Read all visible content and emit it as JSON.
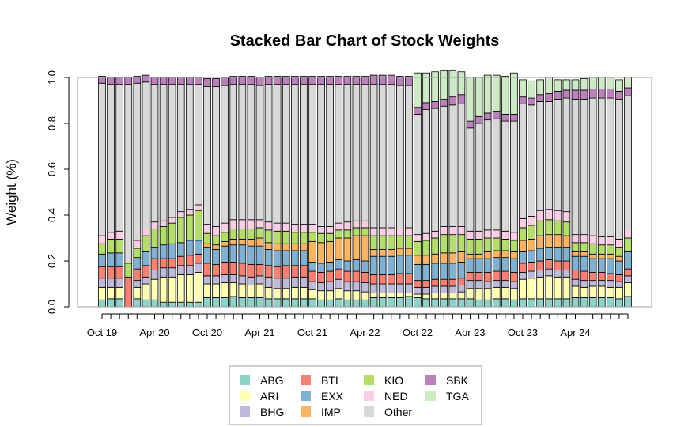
{
  "chart_data": {
    "type": "bar",
    "stacked": true,
    "title": "Stacked Bar Chart of Stock Weights",
    "xlabel": "",
    "ylabel": "Weight (%)",
    "ylim": [
      0,
      1
    ],
    "yticks": [
      0.0,
      0.2,
      0.4,
      0.6,
      0.8,
      1.0
    ],
    "ytick_labels": [
      "0.0",
      "0.2",
      "0.4",
      "0.6",
      "0.8",
      "1.0"
    ],
    "grid": false,
    "legend_position": "bottom",
    "categories": [
      "2019-10",
      "2019-11",
      "2019-12",
      "2020-01",
      "2020-02",
      "2020-03",
      "2020-04",
      "2020-05",
      "2020-06",
      "2020-07",
      "2020-08",
      "2020-09",
      "2020-10",
      "2020-11",
      "2020-12",
      "2021-01",
      "2021-02",
      "2021-03",
      "2021-04",
      "2021-05",
      "2021-06",
      "2021-07",
      "2021-08",
      "2021-09",
      "2021-10",
      "2021-11",
      "2021-12",
      "2022-01",
      "2022-02",
      "2022-03",
      "2022-04",
      "2022-05",
      "2022-06",
      "2022-07",
      "2022-08",
      "2022-09",
      "2022-10",
      "2022-11",
      "2022-12",
      "2023-01",
      "2023-02",
      "2023-03",
      "2023-04",
      "2023-05",
      "2023-06",
      "2023-07",
      "2023-08",
      "2023-09",
      "2023-10",
      "2023-11",
      "2023-12",
      "2024-01",
      "2024-02",
      "2024-03",
      "2024-04",
      "2024-05",
      "2024-06",
      "2024-07",
      "2024-08",
      "2024-09",
      "2024-10"
    ],
    "x_tick_labels": [
      {
        "index": 0,
        "label": "Oct 19"
      },
      {
        "index": 6,
        "label": "Apr 20"
      },
      {
        "index": 12,
        "label": "Oct 20"
      },
      {
        "index": 18,
        "label": "Apr 21"
      },
      {
        "index": 24,
        "label": "Oct 21"
      },
      {
        "index": 30,
        "label": "Apr 22"
      },
      {
        "index": 36,
        "label": "Oct 22"
      },
      {
        "index": 42,
        "label": "Apr 23"
      },
      {
        "index": 48,
        "label": "Oct 23"
      },
      {
        "index": 54,
        "label": "Apr 24"
      }
    ],
    "series": [
      {
        "name": "ABG",
        "color": "#8DD3C7",
        "values": [
          0.03,
          0.035,
          0.035,
          0.0,
          0.035,
          0.03,
          0.03,
          0.02,
          0.02,
          0.02,
          0.02,
          0.02,
          0.04,
          0.04,
          0.04,
          0.045,
          0.04,
          0.04,
          0.04,
          0.035,
          0.035,
          0.035,
          0.035,
          0.035,
          0.035,
          0.03,
          0.03,
          0.035,
          0.03,
          0.03,
          0.03,
          0.04,
          0.04,
          0.04,
          0.04,
          0.045,
          0.04,
          0.035,
          0.035,
          0.035,
          0.035,
          0.035,
          0.035,
          0.03,
          0.03,
          0.035,
          0.035,
          0.03,
          0.035,
          0.035,
          0.035,
          0.035,
          0.035,
          0.035,
          0.04,
          0.04,
          0.04,
          0.04,
          0.04,
          0.035,
          0.045
        ]
      },
      {
        "name": "ARI",
        "color": "#FFFFB3",
        "values": [
          0.055,
          0.05,
          0.05,
          0.0,
          0.05,
          0.07,
          0.09,
          0.11,
          0.11,
          0.12,
          0.12,
          0.13,
          0.06,
          0.06,
          0.065,
          0.06,
          0.06,
          0.055,
          0.06,
          0.05,
          0.045,
          0.045,
          0.05,
          0.05,
          0.04,
          0.04,
          0.04,
          0.045,
          0.04,
          0.04,
          0.035,
          0.02,
          0.02,
          0.02,
          0.02,
          0.015,
          0.015,
          0.02,
          0.025,
          0.025,
          0.025,
          0.03,
          0.045,
          0.05,
          0.05,
          0.05,
          0.05,
          0.05,
          0.085,
          0.09,
          0.095,
          0.1,
          0.095,
          0.095,
          0.05,
          0.045,
          0.05,
          0.05,
          0.045,
          0.05,
          0.06
        ]
      },
      {
        "name": "BHG",
        "color": "#BEBADA",
        "values": [
          0.04,
          0.04,
          0.04,
          0.0,
          0.03,
          0.03,
          0.04,
          0.04,
          0.04,
          0.04,
          0.04,
          0.04,
          0.035,
          0.035,
          0.035,
          0.035,
          0.035,
          0.035,
          0.035,
          0.045,
          0.045,
          0.045,
          0.045,
          0.045,
          0.035,
          0.035,
          0.04,
          0.04,
          0.04,
          0.04,
          0.04,
          0.04,
          0.04,
          0.04,
          0.04,
          0.04,
          0.03,
          0.03,
          0.03,
          0.03,
          0.03,
          0.03,
          0.035,
          0.035,
          0.03,
          0.03,
          0.03,
          0.03,
          0.03,
          0.03,
          0.03,
          0.03,
          0.03,
          0.03,
          0.03,
          0.03,
          0.025,
          0.025,
          0.03,
          0.025,
          0.03
        ]
      },
      {
        "name": "BTI",
        "color": "#FB8072",
        "values": [
          0.05,
          0.05,
          0.05,
          0.13,
          0.05,
          0.05,
          0.05,
          0.04,
          0.04,
          0.04,
          0.045,
          0.04,
          0.055,
          0.05,
          0.055,
          0.055,
          0.055,
          0.055,
          0.05,
          0.05,
          0.05,
          0.055,
          0.05,
          0.05,
          0.045,
          0.045,
          0.045,
          0.045,
          0.045,
          0.045,
          0.045,
          0.04,
          0.04,
          0.04,
          0.045,
          0.045,
          0.03,
          0.03,
          0.03,
          0.03,
          0.03,
          0.03,
          0.035,
          0.035,
          0.04,
          0.04,
          0.04,
          0.04,
          0.04,
          0.04,
          0.04,
          0.04,
          0.04,
          0.04,
          0.04,
          0.04,
          0.035,
          0.035,
          0.03,
          0.03,
          0.03
        ]
      },
      {
        "name": "EXX",
        "color": "#80B1D3",
        "values": [
          0.055,
          0.06,
          0.06,
          0.0,
          0.05,
          0.06,
          0.05,
          0.06,
          0.065,
          0.06,
          0.065,
          0.06,
          0.07,
          0.065,
          0.07,
          0.075,
          0.08,
          0.08,
          0.08,
          0.07,
          0.07,
          0.065,
          0.065,
          0.065,
          0.04,
          0.04,
          0.04,
          0.04,
          0.045,
          0.05,
          0.05,
          0.08,
          0.08,
          0.08,
          0.08,
          0.08,
          0.07,
          0.07,
          0.07,
          0.07,
          0.07,
          0.07,
          0.06,
          0.06,
          0.06,
          0.06,
          0.06,
          0.06,
          0.05,
          0.05,
          0.055,
          0.055,
          0.06,
          0.06,
          0.06,
          0.065,
          0.06,
          0.06,
          0.065,
          0.06,
          0.075
        ]
      },
      {
        "name": "IMP",
        "color": "#FDB462",
        "values": [
          0.0,
          0.0,
          0.0,
          0.0,
          0.0,
          0.0,
          0.0,
          0.0,
          0.0,
          0.0,
          0.0,
          0.0,
          0.015,
          0.02,
          0.02,
          0.025,
          0.025,
          0.03,
          0.035,
          0.03,
          0.03,
          0.03,
          0.03,
          0.03,
          0.09,
          0.09,
          0.09,
          0.095,
          0.1,
          0.105,
          0.11,
          0.03,
          0.03,
          0.03,
          0.03,
          0.03,
          0.04,
          0.04,
          0.04,
          0.045,
          0.045,
          0.045,
          0.02,
          0.02,
          0.03,
          0.03,
          0.03,
          0.03,
          0.05,
          0.05,
          0.055,
          0.055,
          0.055,
          0.05,
          0.02,
          0.02,
          0.02,
          0.02,
          0.02,
          0.02,
          0.0
        ]
      },
      {
        "name": "KIO",
        "color": "#B3DE69",
        "values": [
          0.045,
          0.06,
          0.06,
          0.06,
          0.04,
          0.07,
          0.08,
          0.08,
          0.09,
          0.11,
          0.11,
          0.13,
          0.045,
          0.04,
          0.04,
          0.045,
          0.045,
          0.045,
          0.045,
          0.055,
          0.055,
          0.055,
          0.05,
          0.05,
          0.04,
          0.04,
          0.035,
          0.035,
          0.035,
          0.035,
          0.035,
          0.06,
          0.06,
          0.06,
          0.055,
          0.055,
          0.06,
          0.065,
          0.07,
          0.08,
          0.08,
          0.075,
          0.065,
          0.065,
          0.06,
          0.055,
          0.05,
          0.05,
          0.055,
          0.06,
          0.065,
          0.065,
          0.06,
          0.06,
          0.04,
          0.04,
          0.045,
          0.04,
          0.04,
          0.04,
          0.06
        ]
      },
      {
        "name": "NED",
        "color": "#FCCDE5",
        "values": [
          0.035,
          0.03,
          0.035,
          0.0,
          0.035,
          0.03,
          0.03,
          0.025,
          0.025,
          0.025,
          0.025,
          0.025,
          0.04,
          0.04,
          0.04,
          0.04,
          0.04,
          0.04,
          0.035,
          0.035,
          0.035,
          0.035,
          0.035,
          0.035,
          0.035,
          0.03,
          0.03,
          0.03,
          0.035,
          0.03,
          0.03,
          0.035,
          0.035,
          0.035,
          0.03,
          0.035,
          0.03,
          0.03,
          0.03,
          0.035,
          0.035,
          0.035,
          0.035,
          0.035,
          0.035,
          0.035,
          0.035,
          0.035,
          0.04,
          0.04,
          0.045,
          0.045,
          0.045,
          0.045,
          0.035,
          0.035,
          0.035,
          0.035,
          0.035,
          0.035,
          0.04
        ]
      },
      {
        "name": "Other",
        "color": "#D9D9D9",
        "values": [
          0.665,
          0.645,
          0.64,
          0.78,
          0.685,
          0.64,
          0.6,
          0.595,
          0.58,
          0.555,
          0.545,
          0.525,
          0.6,
          0.61,
          0.6,
          0.59,
          0.59,
          0.59,
          0.585,
          0.6,
          0.605,
          0.605,
          0.61,
          0.61,
          0.61,
          0.62,
          0.62,
          0.605,
          0.6,
          0.595,
          0.595,
          0.625,
          0.625,
          0.625,
          0.625,
          0.62,
          0.525,
          0.54,
          0.535,
          0.525,
          0.53,
          0.535,
          0.45,
          0.47,
          0.48,
          0.485,
          0.48,
          0.485,
          0.5,
          0.485,
          0.475,
          0.47,
          0.485,
          0.495,
          0.59,
          0.59,
          0.6,
          0.605,
          0.605,
          0.61,
          0.58
        ]
      },
      {
        "name": "SBK",
        "color": "#BC80BD",
        "values": [
          0.03,
          0.03,
          0.03,
          0.03,
          0.03,
          0.03,
          0.03,
          0.03,
          0.03,
          0.03,
          0.03,
          0.03,
          0.035,
          0.035,
          0.035,
          0.035,
          0.035,
          0.035,
          0.035,
          0.035,
          0.035,
          0.035,
          0.035,
          0.035,
          0.035,
          0.035,
          0.035,
          0.035,
          0.035,
          0.035,
          0.035,
          0.04,
          0.04,
          0.04,
          0.04,
          0.04,
          0.03,
          0.03,
          0.03,
          0.03,
          0.035,
          0.04,
          0.03,
          0.03,
          0.03,
          0.03,
          0.03,
          0.03,
          0.03,
          0.03,
          0.03,
          0.035,
          0.035,
          0.035,
          0.04,
          0.04,
          0.04,
          0.04,
          0.04,
          0.035,
          0.035
        ]
      },
      {
        "name": "TGA",
        "color": "#CCEBC5",
        "values": [
          0.0,
          0.0,
          0.0,
          0.0,
          0.0,
          0.0,
          0.0,
          0.0,
          0.0,
          0.0,
          0.0,
          0.0,
          0.0,
          0.0,
          0.0,
          0.0,
          0.0,
          0.0,
          0.0,
          0.0,
          0.0,
          0.0,
          0.0,
          0.0,
          0.0,
          0.0,
          0.0,
          0.0,
          0.0,
          0.0,
          0.0,
          0.0,
          0.0,
          0.0,
          0.0,
          0.0,
          0.15,
          0.13,
          0.13,
          0.125,
          0.115,
          0.1,
          0.19,
          0.17,
          0.165,
          0.16,
          0.165,
          0.18,
          0.075,
          0.075,
          0.065,
          0.07,
          0.05,
          0.045,
          0.045,
          0.05,
          0.05,
          0.05,
          0.05,
          0.05,
          0.045
        ]
      }
    ]
  }
}
